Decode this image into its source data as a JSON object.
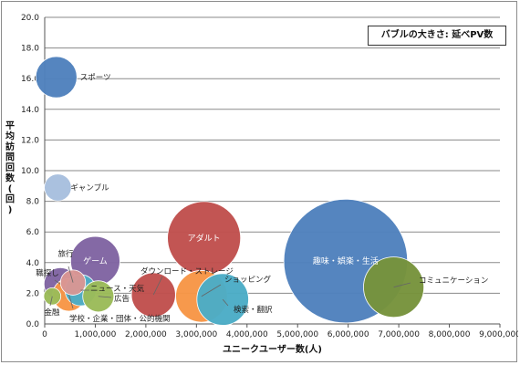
{
  "chart_data": {
    "type": "scatter",
    "variant": "bubble",
    "xlabel": "ユニークユーザー数(人)",
    "ylabel": "平均訪問回数(回)",
    "xlim": [
      0,
      9000000
    ],
    "ylim": [
      0,
      20
    ],
    "x_ticks": [
      "0",
      "1,000,000",
      "2,000,000",
      "3,000,000",
      "4,000,000",
      "5,000,000",
      "6,000,000",
      "7,000,000",
      "8,000,000",
      "9,000,000"
    ],
    "y_ticks": [
      "0.0",
      "2.0",
      "4.0",
      "6.0",
      "8.0",
      "10.0",
      "12.0",
      "14.0",
      "16.0",
      "18.0",
      "20.0"
    ],
    "grid": "horizontal",
    "note": "バブルの大きさ: 延べPV数",
    "series": [
      {
        "name": "スポーツ",
        "x": 230000,
        "y": 16.1,
        "size": 0.35,
        "color": "#4f81bd",
        "label_pos": "right"
      },
      {
        "name": "ギャンブル",
        "x": 260000,
        "y": 8.9,
        "size": 0.15,
        "color": "#a7bfde",
        "label_pos": "right"
      },
      {
        "name": "ゲーム",
        "x": 1000000,
        "y": 4.1,
        "size": 0.5,
        "color": "#8064a2",
        "label_pos": "inside"
      },
      {
        "name": "旅行",
        "x": 560000,
        "y": 2.7,
        "size": 0.13,
        "color": "#d99694",
        "label_pos": "leader"
      },
      {
        "name": "職探し",
        "x": 310000,
        "y": 2.6,
        "size": 0.22,
        "color": "#8064a2",
        "label_pos": "leader"
      },
      {
        "name": "金融",
        "x": 150000,
        "y": 1.8,
        "size": 0.06,
        "color": "#9bbb59",
        "label_pos": "leader"
      },
      {
        "name": "学校・企業・団体・公的機関",
        "x": 480000,
        "y": 1.9,
        "size": 0.22,
        "color": "#f79646",
        "label_pos": "leader"
      },
      {
        "name": "ニュース・天気",
        "x": 710000,
        "y": 2.2,
        "size": 0.2,
        "color": "#4bacc6",
        "label_pos": "leader"
      },
      {
        "name": "広告",
        "x": 1060000,
        "y": 1.8,
        "size": 0.2,
        "color": "#9bbb59",
        "label_pos": "leader"
      },
      {
        "name": "ダウンロード・ストレージ",
        "x": 2150000,
        "y": 1.9,
        "size": 0.4,
        "color": "#c0504d",
        "label_pos": "leader"
      },
      {
        "name": "アダルト",
        "x": 3150000,
        "y": 5.6,
        "size": 1.1,
        "color": "#c0504d",
        "label_pos": "inside"
      },
      {
        "name": "ショッピング",
        "x": 3100000,
        "y": 1.8,
        "size": 0.55,
        "color": "#f79646",
        "label_pos": "leader"
      },
      {
        "name": "検索・翻訳",
        "x": 3520000,
        "y": 1.6,
        "size": 0.55,
        "color": "#4bacc6",
        "label_pos": "leader"
      },
      {
        "name": "趣味・娯楽・生活",
        "x": 5950000,
        "y": 4.1,
        "size": 3.15,
        "color": "#4f81bd",
        "label_pos": "inside"
      },
      {
        "name": "コミュニケーション",
        "x": 6900000,
        "y": 2.4,
        "size": 0.75,
        "color": "#77933c",
        "label_pos": "leader"
      }
    ]
  }
}
